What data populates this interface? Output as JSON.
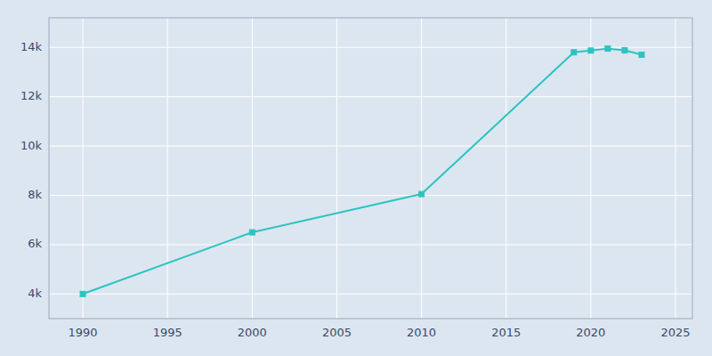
{
  "chart_data": {
    "type": "line",
    "x": [
      1990,
      2000,
      2010,
      2019,
      2020,
      2021,
      2022,
      2023
    ],
    "values": [
      4000,
      6500,
      8050,
      13800,
      13870,
      13950,
      13880,
      13700
    ],
    "color": "#2BC4C0",
    "marker": "square",
    "xlim": [
      1988,
      2026
    ],
    "xticks": [
      1990,
      1995,
      2000,
      2005,
      2010,
      2015,
      2020,
      2025
    ],
    "ylim": [
      3000,
      15200
    ],
    "yticks": [
      {
        "value": 4000,
        "label": "4k"
      },
      {
        "value": 6000,
        "label": "6k"
      },
      {
        "value": 8000,
        "label": "8k"
      },
      {
        "value": 10000,
        "label": "10k"
      },
      {
        "value": 12000,
        "label": "12k"
      },
      {
        "value": 14000,
        "label": "14k"
      }
    ],
    "grid": true
  }
}
